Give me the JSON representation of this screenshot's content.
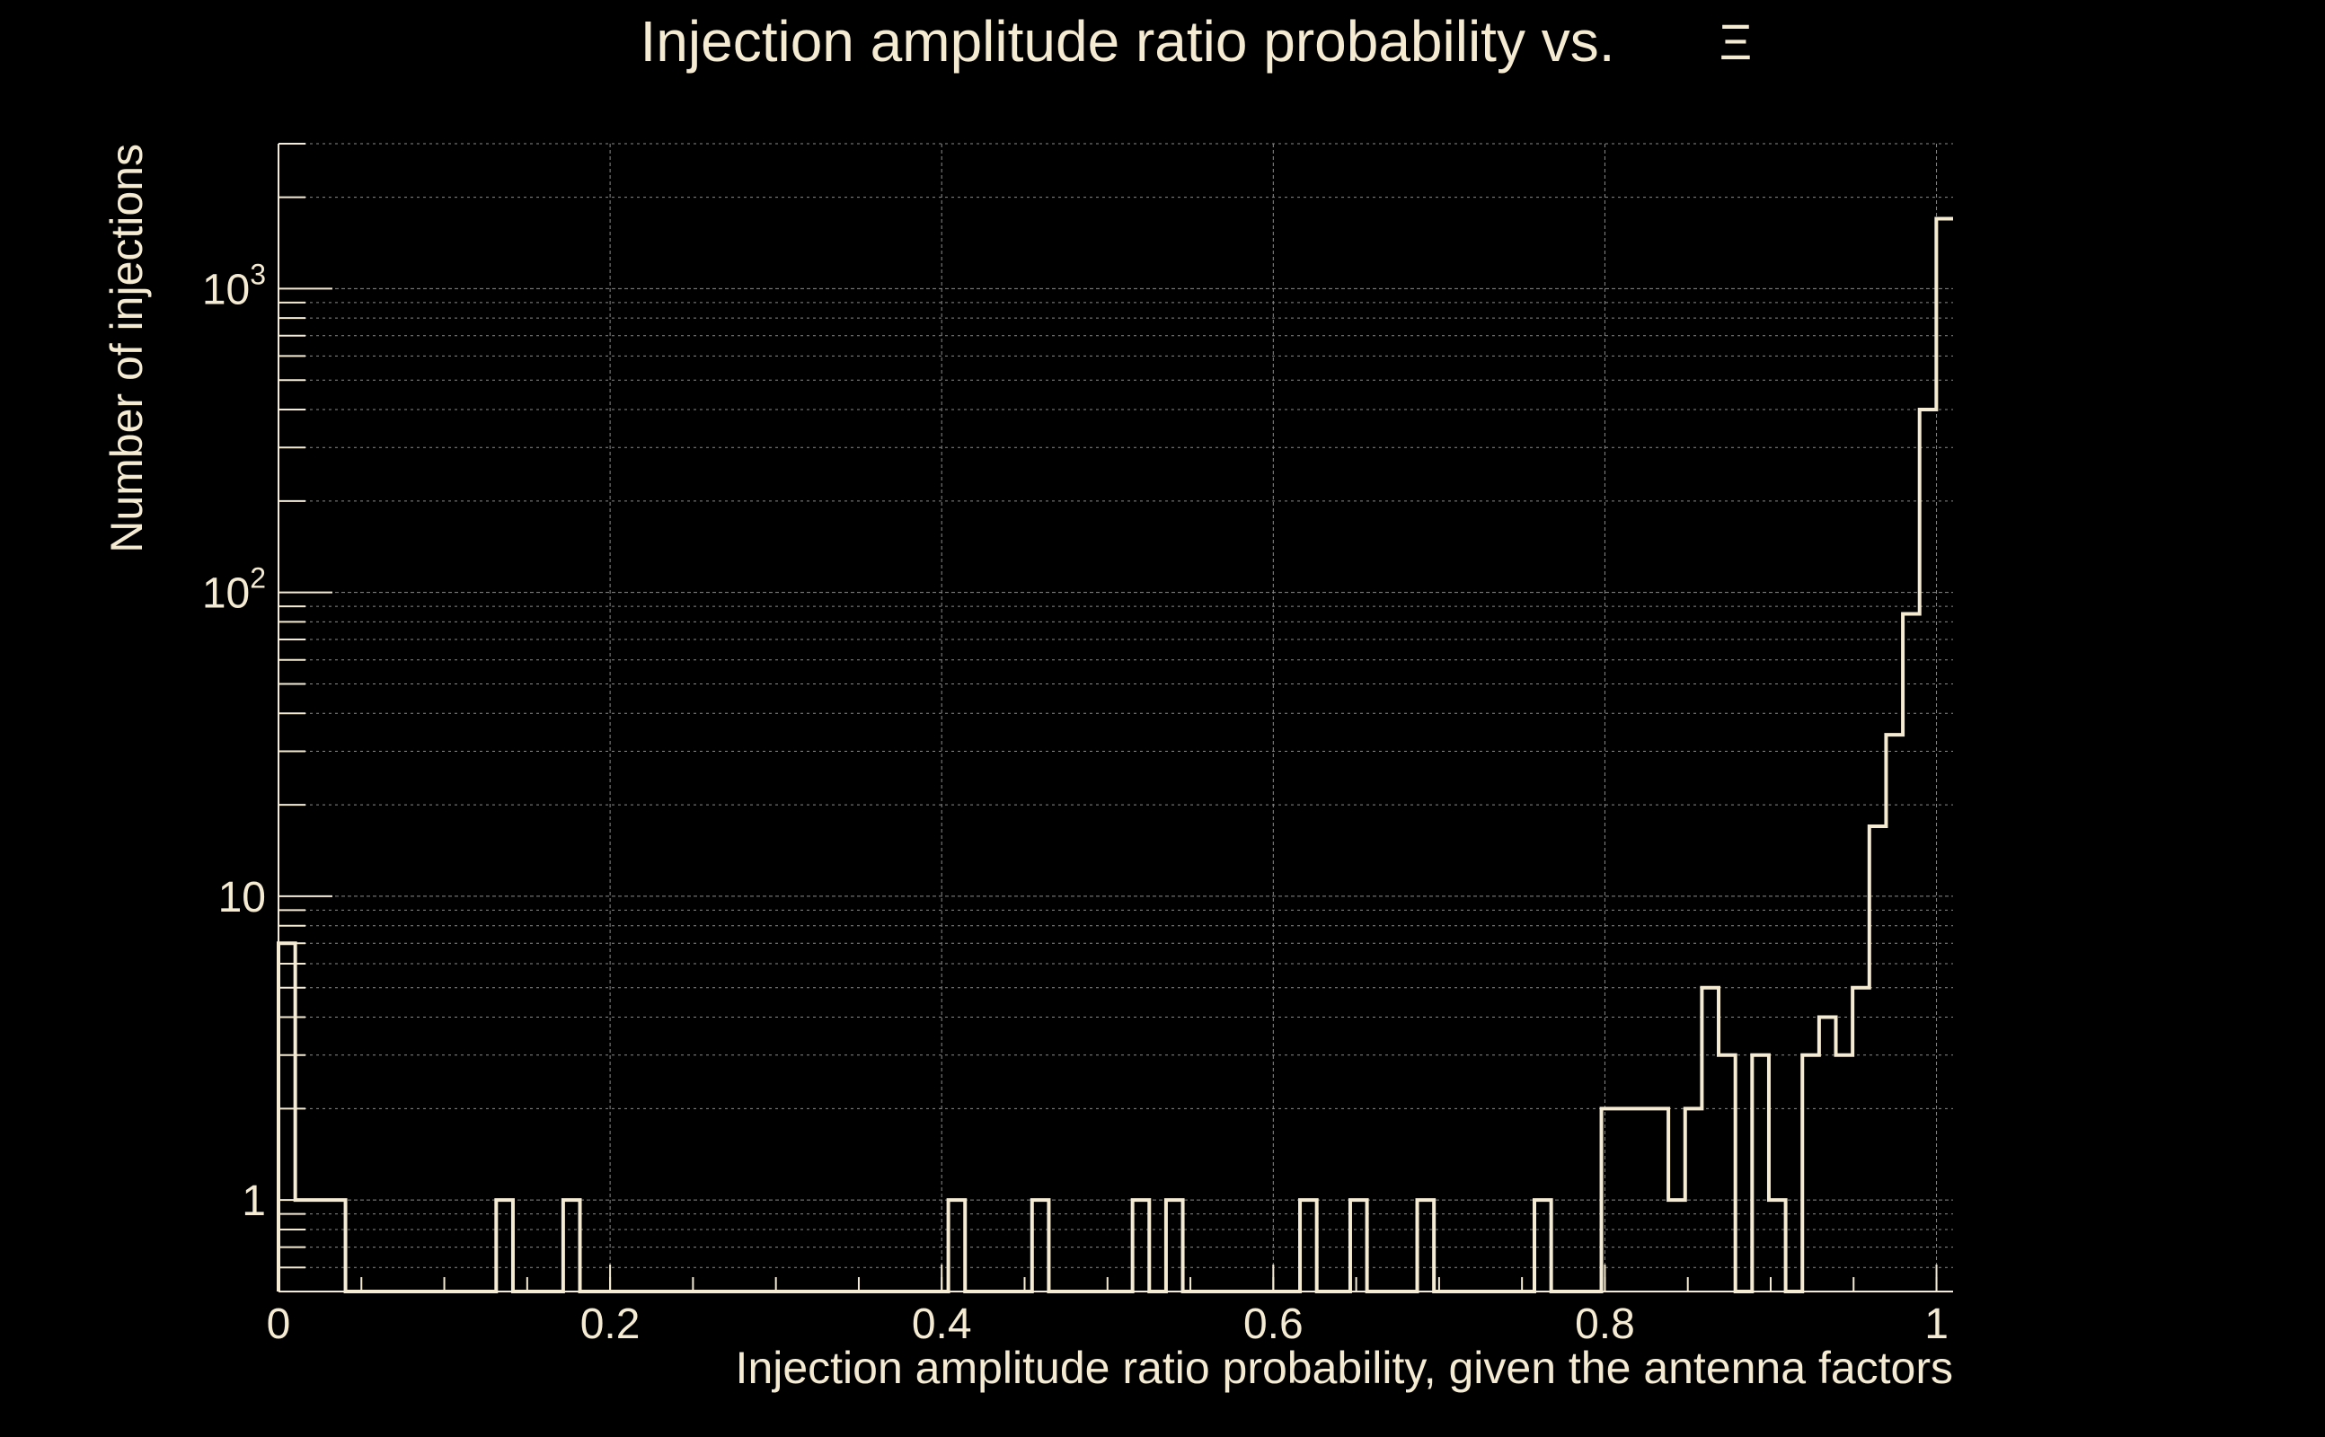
{
  "chart_data": {
    "type": "bar",
    "subtype": "step-histogram",
    "title": "Injection amplitude ratio probability vs.",
    "title_symbol": "Ξ",
    "xlabel": "Injection amplitude ratio probability, given the antenna factors",
    "ylabel": "Number of injections",
    "xlim": [
      0,
      1.01
    ],
    "ylim": [
      0.5,
      3000
    ],
    "y_scale": "log",
    "grid": true,
    "x_ticks": [
      {
        "value": 0,
        "label": "0"
      },
      {
        "value": 0.2,
        "label": "0.2"
      },
      {
        "value": 0.4,
        "label": "0.4"
      },
      {
        "value": 0.6,
        "label": "0.6"
      },
      {
        "value": 0.8,
        "label": "0.8"
      },
      {
        "value": 1,
        "label": "1"
      }
    ],
    "y_ticks": [
      {
        "value": 1,
        "label": "1",
        "sup": ""
      },
      {
        "value": 10,
        "label": "10",
        "sup": ""
      },
      {
        "value": 100,
        "label": "10",
        "sup": "2"
      },
      {
        "value": 1000,
        "label": "10",
        "sup": "3"
      }
    ],
    "bin_width": 0.0101,
    "bin_edges_start": 0,
    "counts": [
      7,
      1,
      1,
      1,
      0,
      0,
      0,
      0,
      0,
      0,
      0,
      0,
      0,
      1,
      0,
      0,
      0,
      1,
      0,
      0,
      0,
      0,
      0,
      0,
      0,
      0,
      0,
      0,
      0,
      0,
      0,
      0,
      0,
      0,
      0,
      0,
      0,
      0,
      0,
      0,
      1,
      0,
      0,
      0,
      0,
      1,
      0,
      0,
      0,
      0,
      0,
      1,
      0,
      1,
      0,
      0,
      0,
      0,
      0,
      0,
      0,
      1,
      0,
      0,
      1,
      0,
      0,
      0,
      1,
      0,
      0,
      0,
      0,
      0,
      0,
      1,
      0,
      0,
      0,
      2,
      2,
      2,
      2,
      1,
      2,
      5,
      3,
      0,
      3,
      1,
      0,
      3,
      4,
      3,
      5,
      17,
      34,
      85,
      400,
      1700
    ]
  },
  "colors": {
    "background": "#000000",
    "foreground": "#f5ebd2",
    "grid": "#8a8a8a"
  }
}
